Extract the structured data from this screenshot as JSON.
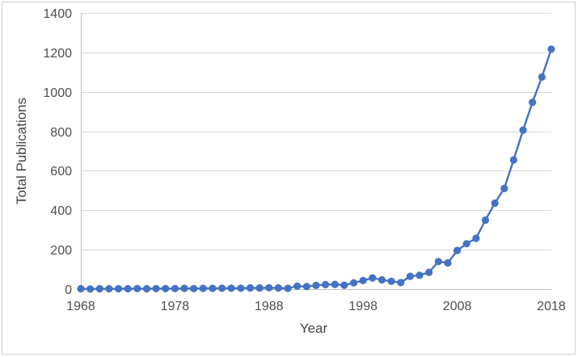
{
  "chart_data": {
    "type": "line",
    "title": "",
    "xlabel": "Year",
    "ylabel": "Total Publications",
    "series_name": "Total Publications",
    "x": [
      1968,
      1969,
      1970,
      1971,
      1972,
      1973,
      1974,
      1975,
      1976,
      1977,
      1978,
      1979,
      1980,
      1981,
      1982,
      1983,
      1984,
      1985,
      1986,
      1987,
      1988,
      1989,
      1990,
      1991,
      1992,
      1993,
      1994,
      1995,
      1996,
      1997,
      1998,
      1999,
      2000,
      2001,
      2002,
      2003,
      2004,
      2005,
      2006,
      2007,
      2008,
      2009,
      2010,
      2011,
      2012,
      2013,
      2014,
      2015,
      2016,
      2017,
      2018
    ],
    "values": [
      2,
      1,
      2,
      2,
      2,
      2,
      3,
      2,
      3,
      3,
      3,
      4,
      3,
      4,
      4,
      5,
      5,
      5,
      6,
      6,
      7,
      6,
      4,
      15,
      13,
      19,
      23,
      24,
      20,
      32,
      44,
      57,
      47,
      40,
      33,
      65,
      70,
      85,
      140,
      133,
      196,
      230,
      258,
      350,
      436,
      510,
      655,
      806,
      947,
      1075,
      1216
    ],
    "xlim": [
      1968,
      2018
    ],
    "ylim": [
      0,
      1400
    ],
    "x_ticks": [
      "1968",
      "1978",
      "1988",
      "1998",
      "2008",
      "2018"
    ],
    "y_ticks": [
      "0",
      "200",
      "400",
      "600",
      "800",
      "1000",
      "1200",
      "1400"
    ],
    "grid": "horizontal",
    "legend": "none",
    "line_color": "#4472C4",
    "marker": "circle",
    "marker_color": "#4472C4",
    "gridline_color": "#D9D9D9",
    "axis_line_color": "#BFBFBF",
    "tick_label_color": "#4F4F4F",
    "axis_title_color": "#444444",
    "frame_border_color": "#CFCFCF"
  }
}
